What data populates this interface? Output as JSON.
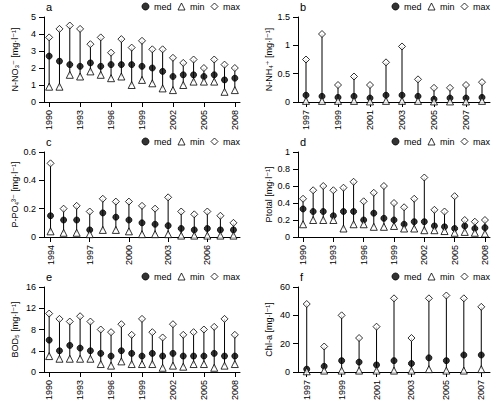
{
  "chart_data": [
    {
      "type": "scatter",
      "annotation": "a",
      "ylabel": "N-NO₃⁻ [mg·l⁻¹]",
      "legend": "upper right",
      "grid": false,
      "line_style": "solid",
      "x": [
        1990,
        1991,
        1992,
        1993,
        1994,
        1995,
        1996,
        1997,
        1998,
        1999,
        2000,
        2001,
        2002,
        2003,
        2004,
        2005,
        2006,
        2007,
        2008
      ],
      "xlim": [
        1989.5,
        2008.5
      ],
      "xticks": [
        1990,
        1993,
        1996,
        1999,
        2002,
        2005,
        2008
      ],
      "ylim": [
        0,
        5
      ],
      "yticks": [
        0,
        1,
        2,
        3,
        4,
        5
      ],
      "series": [
        {
          "name": "med",
          "color": "#000000",
          "marker": "circle",
          "values": [
            2.7,
            2.4,
            2.2,
            2.1,
            2.3,
            2.1,
            2.2,
            2.2,
            2.2,
            2.1,
            2.0,
            1.8,
            1.5,
            1.6,
            1.6,
            1.5,
            1.6,
            1.3,
            1.4
          ]
        },
        {
          "name": "min",
          "color": "#000000",
          "marker": "open_triangle",
          "values": [
            0.9,
            0.9,
            1.6,
            1.5,
            1.8,
            1.6,
            1.4,
            1.5,
            1.0,
            1.3,
            1.1,
            0.8,
            0.7,
            1.0,
            1.2,
            1.2,
            1.2,
            0.6,
            0.7
          ]
        },
        {
          "name": "max",
          "color": "#000000",
          "marker": "open_diamond",
          "values": [
            3.8,
            4.3,
            4.5,
            4.3,
            3.4,
            3.8,
            2.9,
            3.7,
            3.2,
            3.6,
            3.1,
            3.1,
            2.6,
            2.3,
            2.5,
            2.0,
            2.5,
            2.2,
            2.0
          ]
        }
      ]
    },
    {
      "type": "scatter",
      "annotation": "b",
      "ylabel": "N-NH₄⁺ [mg·l⁻¹]",
      "legend": "upper right",
      "grid": false,
      "line_style": "solid",
      "x": [
        1997,
        1998,
        1999,
        2000,
        2001,
        2002,
        2003,
        2004,
        2005,
        2006,
        2007,
        2008
      ],
      "xlim": [
        1996.5,
        2008.5
      ],
      "xticks": [
        1997,
        1999,
        2001,
        2003,
        2005,
        2007
      ],
      "ylim": [
        0,
        1.5
      ],
      "yticks": [
        0,
        0.5,
        1,
        1.5
      ],
      "series": [
        {
          "name": "med",
          "color": "#000000",
          "marker": "circle",
          "values": [
            0.12,
            0.1,
            0.08,
            0.1,
            0.07,
            0.12,
            0.12,
            0.1,
            0.05,
            0.07,
            0.07,
            0.08
          ]
        },
        {
          "name": "min",
          "color": "#000000",
          "marker": "open_triangle",
          "values": [
            0.02,
            0.02,
            0.02,
            0.02,
            0.01,
            0.02,
            0.02,
            0.02,
            0.01,
            0.01,
            0.01,
            0.02
          ]
        },
        {
          "name": "max",
          "color": "#000000",
          "marker": "open_diamond",
          "values": [
            0.75,
            1.2,
            0.3,
            0.45,
            0.3,
            0.7,
            0.98,
            0.4,
            0.25,
            0.25,
            0.3,
            0.35
          ]
        }
      ]
    },
    {
      "type": "scatter",
      "annotation": "c",
      "ylabel": "P-PO₄³⁻ [mg·l⁻¹]",
      "legend": "upper right",
      "grid": false,
      "line_style": "solid",
      "x": [
        1994,
        1995,
        1996,
        1997,
        1998,
        1999,
        2000,
        2001,
        2002,
        2003,
        2004,
        2005,
        2006,
        2007,
        2008
      ],
      "xlim": [
        1993.5,
        2008.5
      ],
      "xticks": [
        1994,
        1997,
        2000,
        2003,
        2006
      ],
      "ylim": [
        0,
        0.6
      ],
      "yticks": [
        0,
        0.2,
        0.4,
        0.6
      ],
      "series": [
        {
          "name": "med",
          "color": "#000000",
          "marker": "circle",
          "values": [
            0.15,
            0.12,
            0.12,
            0.05,
            0.17,
            0.14,
            0.12,
            0.1,
            0.09,
            0.08,
            0.06,
            0.05,
            0.06,
            0.05,
            0.05
          ]
        },
        {
          "name": "min",
          "color": "#000000",
          "marker": "open_triangle",
          "values": [
            0.04,
            0.03,
            0.03,
            0.02,
            0.05,
            0.05,
            0.04,
            0.02,
            0.02,
            0.02,
            0.01,
            0.01,
            0.01,
            0.01,
            0.01
          ]
        },
        {
          "name": "max",
          "color": "#000000",
          "marker": "open_diamond",
          "values": [
            0.52,
            0.2,
            0.22,
            0.18,
            0.27,
            0.25,
            0.25,
            0.22,
            0.2,
            0.28,
            0.18,
            0.16,
            0.18,
            0.15,
            0.1
          ]
        }
      ]
    },
    {
      "type": "scatter",
      "annotation": "d",
      "ylabel": "Ptotal [mg·l⁻¹]",
      "legend": "upper right",
      "grid": false,
      "line_style": "solid",
      "x": [
        1990,
        1991,
        1992,
        1993,
        1994,
        1995,
        1996,
        1997,
        1998,
        1999,
        2000,
        2001,
        2002,
        2003,
        2004,
        2005,
        2006,
        2007,
        2008
      ],
      "xlim": [
        1989.5,
        2008.5
      ],
      "xticks": [
        1990,
        1993,
        1996,
        1999,
        2002,
        2005,
        2008
      ],
      "ylim": [
        0,
        1
      ],
      "yticks": [
        0,
        0.2,
        0.4,
        0.6,
        0.8,
        1
      ],
      "series": [
        {
          "name": "med",
          "color": "#000000",
          "marker": "circle",
          "values": [
            0.33,
            0.3,
            0.3,
            0.25,
            0.3,
            0.3,
            0.2,
            0.28,
            0.22,
            0.2,
            0.15,
            0.18,
            0.18,
            0.13,
            0.12,
            0.1,
            0.13,
            0.1,
            0.11
          ]
        },
        {
          "name": "min",
          "color": "#000000",
          "marker": "open_triangle",
          "values": [
            0.15,
            0.2,
            0.2,
            0.2,
            0.1,
            0.15,
            0.15,
            0.12,
            0.12,
            0.13,
            0.1,
            0.1,
            0.08,
            0.08,
            0.07,
            0.05,
            0.06,
            0.05,
            0.04
          ]
        },
        {
          "name": "max",
          "color": "#000000",
          "marker": "open_diamond",
          "values": [
            0.45,
            0.55,
            0.6,
            0.55,
            0.58,
            0.65,
            0.42,
            0.52,
            0.6,
            0.4,
            0.35,
            0.45,
            0.7,
            0.32,
            0.3,
            0.48,
            0.2,
            0.18,
            0.2
          ]
        }
      ]
    },
    {
      "type": "scatter",
      "annotation": "e",
      "ylabel": "BOD₅ [mg·l⁻¹]",
      "legend": "upper right",
      "grid": false,
      "line_style": "solid",
      "x": [
        1990,
        1991,
        1992,
        1993,
        1994,
        1995,
        1996,
        1997,
        1998,
        1999,
        2000,
        2001,
        2002,
        2003,
        2004,
        2005,
        2006,
        2007,
        2008
      ],
      "xlim": [
        1989.5,
        2008.5
      ],
      "xticks": [
        1990,
        1993,
        1996,
        1999,
        2002,
        2005,
        2008
      ],
      "ylim": [
        0,
        16
      ],
      "yticks": [
        0,
        4,
        8,
        12,
        16
      ],
      "series": [
        {
          "name": "med",
          "color": "#000000",
          "marker": "circle",
          "values": [
            6,
            4,
            5,
            4.5,
            4,
            3.5,
            3,
            4,
            3.5,
            3,
            3.5,
            3,
            3.5,
            3,
            3,
            3,
            3.5,
            3,
            3
          ]
        },
        {
          "name": "min",
          "color": "#000000",
          "marker": "open_triangle",
          "values": [
            3,
            2.5,
            2.5,
            2.5,
            2.5,
            1.5,
            1.2,
            2,
            1.5,
            1.5,
            1.5,
            0.8,
            1.2,
            1,
            1.5,
            1.5,
            0.8,
            1.2,
            1.5
          ]
        },
        {
          "name": "max",
          "color": "#000000",
          "marker": "open_diamond",
          "values": [
            11,
            10,
            9.5,
            10.5,
            9.5,
            8,
            7.5,
            9,
            7,
            10,
            7.5,
            6.5,
            9,
            7,
            7.5,
            8,
            8.5,
            10,
            7
          ]
        }
      ]
    },
    {
      "type": "scatter",
      "annotation": "f",
      "ylabel": "Chl-a [mg·l⁻¹]",
      "legend": "upper right",
      "grid": false,
      "line_style": "solid",
      "x": [
        1997,
        1998,
        1999,
        2000,
        2001,
        2002,
        2003,
        2004,
        2005,
        2006,
        2007
      ],
      "xlim": [
        1996.5,
        2007.5
      ],
      "xticks": [
        1997,
        1999,
        2001,
        2003,
        2005,
        2007
      ],
      "ylim": [
        0,
        60
      ],
      "yticks": [
        0,
        20,
        40,
        60
      ],
      "series": [
        {
          "name": "med",
          "color": "#000000",
          "marker": "circle",
          "values": [
            2,
            4,
            8,
            7,
            5,
            8,
            6,
            10,
            8,
            12,
            12
          ]
        },
        {
          "name": "min",
          "color": "#000000",
          "marker": "open_triangle",
          "values": [
            0.5,
            1,
            1,
            1,
            1,
            1,
            1,
            2,
            1,
            1,
            2
          ]
        },
        {
          "name": "max",
          "color": "#000000",
          "marker": "open_diamond",
          "values": [
            48,
            18,
            40,
            24,
            32,
            52,
            24,
            52,
            54,
            52,
            46
          ]
        }
      ]
    }
  ]
}
